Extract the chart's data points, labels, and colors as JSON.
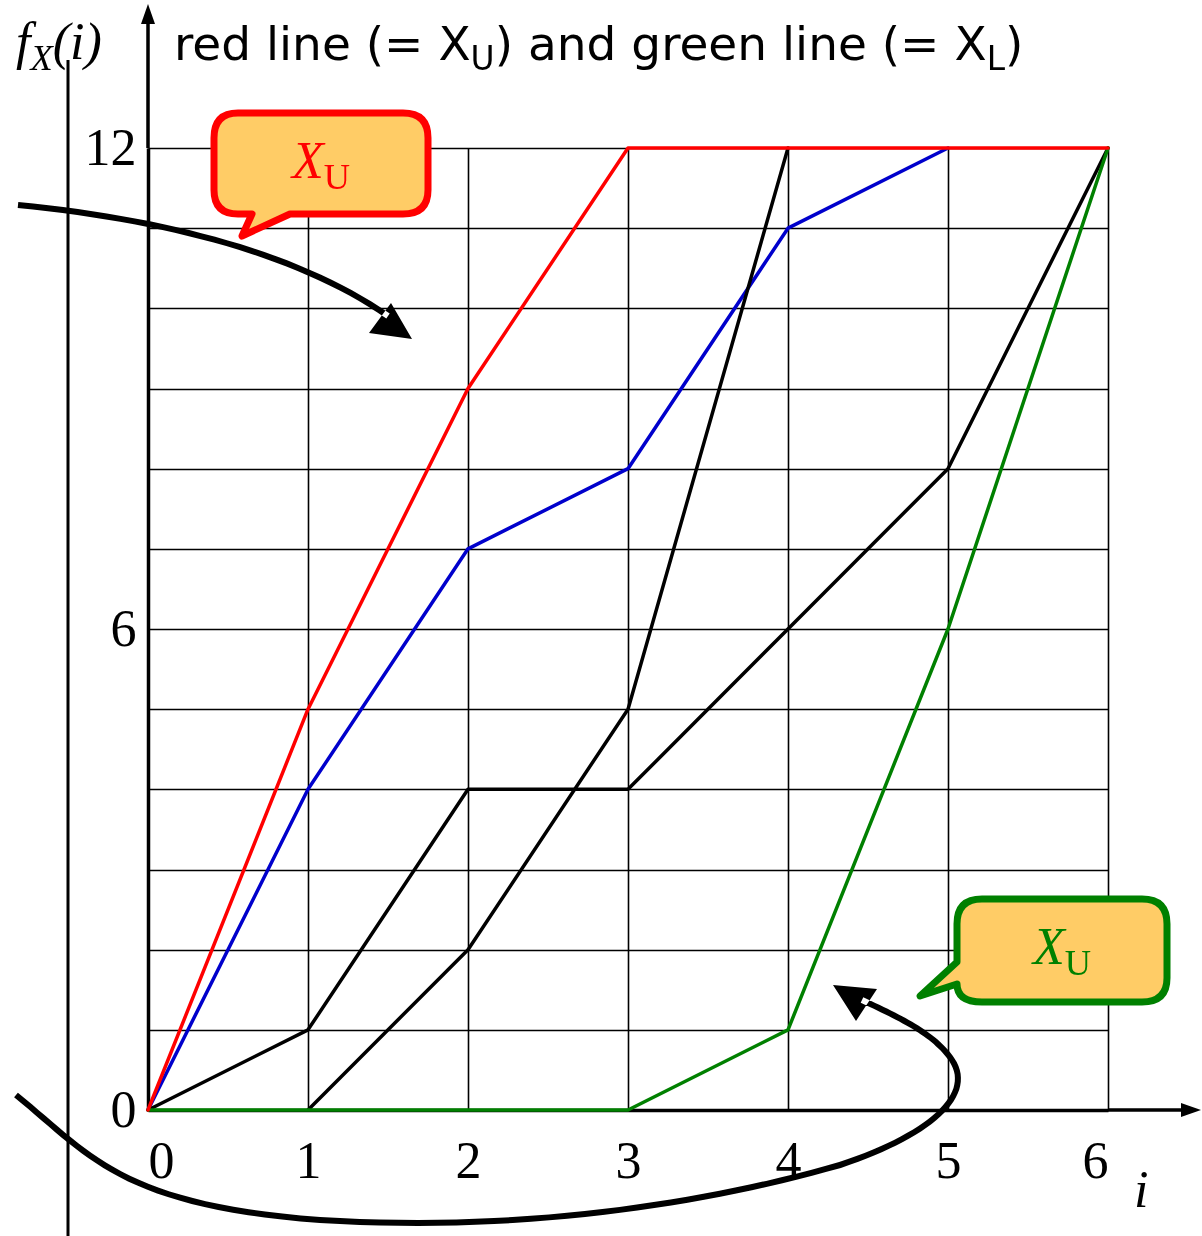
{
  "chart_data": {
    "type": "line",
    "title": "red line (= X$_{U}$) and green line (= X$_{L}$)",
    "xlabel": "i",
    "ylabel": "f$_{X}$(i)",
    "annotations": [
      "X$_{U}$",
      "X$_{U}$"
    ],
    "x": [
      0,
      1,
      2,
      3,
      4,
      5,
      6
    ],
    "series": [
      {
        "color": "#0000cc",
        "values": [
          0,
          4,
          7,
          8,
          11,
          12,
          null
        ]
      },
      {
        "color": "#000000",
        "values": [
          0,
          1,
          4,
          4,
          6,
          8,
          12
        ]
      },
      {
        "color": "#000000",
        "values": [
          null,
          0,
          2,
          5,
          12,
          null,
          null
        ]
      },
      {
        "color": "#008000",
        "values": [
          0,
          0,
          0,
          0,
          1,
          6,
          12
        ]
      },
      {
        "color": "#ff0000",
        "values": [
          0,
          5,
          9,
          12,
          12,
          12,
          12
        ]
      }
    ],
    "xlim": [
      0,
      6
    ],
    "ylim": [
      0,
      12
    ],
    "xticks": [
      0,
      1,
      2,
      3,
      4,
      5,
      6
    ],
    "yticks": [
      0,
      {
        "value": 1,
        "label": null
      },
      {
        "value": 2,
        "label": null
      },
      {
        "value": 3,
        "label": null
      },
      {
        "value": 4,
        "label": null
      },
      {
        "value": 5,
        "label": null
      },
      6,
      {
        "value": 7,
        "label": null
      },
      {
        "value": 8,
        "label": null
      },
      {
        "value": 9,
        "label": null
      },
      {
        "value": 10,
        "label": null
      },
      {
        "value": 11,
        "label": null
      },
      12
    ],
    "grid": true,
    "legend": false
  }
}
